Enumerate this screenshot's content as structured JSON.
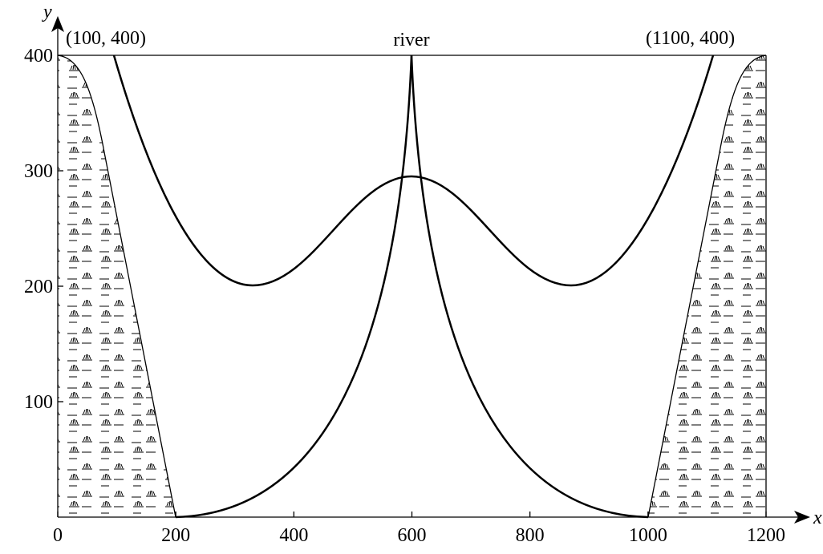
{
  "axes": {
    "x_label": "x",
    "y_label": "y",
    "xlim": [
      0,
      1200
    ],
    "ylim": [
      0,
      400
    ],
    "xticks": [
      0,
      200,
      400,
      600,
      800,
      1000,
      1200
    ],
    "yticks": [
      100,
      200,
      300,
      400
    ]
  },
  "labels": {
    "left_point": "(100, 400)",
    "river": "river",
    "right_point": "(1100, 400)"
  }
}
